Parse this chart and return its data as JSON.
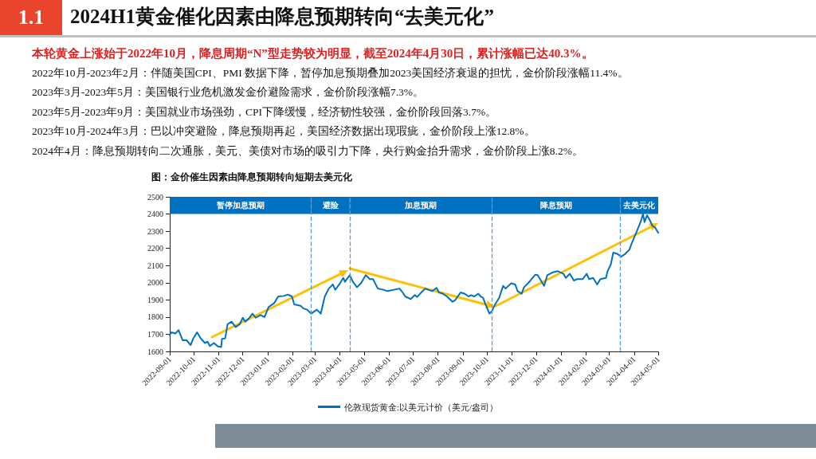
{
  "chart_data": {
    "type": "line",
    "title": "2024H1黄金催化因素由降息预期转向“去美元化”",
    "subtitle": "图：金价催生因素由降息预期转向短期去美元化",
    "annotations": [
      "1.1",
      "本轮黄金上涨始于2022年10月，降息周期“N”型走势较为明显，截至2024年4月30日，累计涨幅已达40.3%。",
      "2022年10月-2023年2月：伴随美国CPI、PMI 数据下降，暂停加息预期叠加2023美国经济衰退的担忧，金价阶段涨幅11.4%。",
      "2023年3月-2023年5月：美国银行业危机激发金价避险需求，金价阶段涨幅7.3%。",
      "2023年5月-2023年9月：美国就业市场强劲，CPI下降缓慢，经济韧性较强，金价阶段回落3.7%。",
      "2023年10月-2024年3月：巴以冲突避险，降息预期再起，美国经济数据出现瑕疵，金价阶段上涨12.8%。",
      "2024年4月：降息预期转向二次通胀，美元、美债对市场的吸引力下降，央行购金抬升需求，金价阶段上涨8.2%。"
    ],
    "xlim": [
      "2022-09-01",
      "2024-05-01"
    ],
    "xticks": [
      "2022-09-01",
      "2022-10-01",
      "2022-11-01",
      "2022-12-01",
      "2023-01-01",
      "2023-02-01",
      "2023-03-01",
      "2023-04-01",
      "2023-05-01",
      "2023-06-01",
      "2023-07-01",
      "2023-08-01",
      "2023-09-01",
      "2023-10-01",
      "2023-11-01",
      "2023-12-01",
      "2024-01-01",
      "2024-02-01",
      "2024-03-01",
      "2024-04-01",
      "2024-05-01"
    ],
    "ylim": [
      1600,
      2500
    ],
    "yticks": [
      1600,
      1700,
      1800,
      1900,
      2000,
      2100,
      2200,
      2300,
      2400,
      2500
    ],
    "grid": false,
    "legend": "bottom",
    "marker": "none",
    "line_style": "solid",
    "series": [
      {
        "name": "伦敦现货黄金:以美元计价（美元/盎司）",
        "color": "#0070c0",
        "x": [
          "2022-09-01",
          "2022-09-03",
          "2022-09-08",
          "2022-09-12",
          "2022-09-17",
          "2022-09-22",
          "2022-09-27",
          "2022-09-30",
          "2022-10-05",
          "2022-10-10",
          "2022-10-15",
          "2022-10-18",
          "2022-10-21",
          "2022-10-26",
          "2022-10-31",
          "2022-11-04",
          "2022-11-05",
          "2022-11-09",
          "2022-11-12",
          "2022-11-17",
          "2022-11-22",
          "2022-11-27",
          "2022-12-01",
          "2022-12-04",
          "2022-12-08",
          "2022-12-13",
          "2022-12-17",
          "2022-12-23",
          "2022-12-28",
          "2023-01-02",
          "2023-01-09",
          "2023-01-14",
          "2023-01-21",
          "2023-01-26",
          "2023-01-31",
          "2023-02-03",
          "2023-02-11",
          "2023-02-14",
          "2023-02-19",
          "2023-02-24",
          "2023-03-03",
          "2023-03-08",
          "2023-03-13",
          "2023-03-18",
          "2023-03-23",
          "2023-03-26",
          "2023-03-31",
          "2023-04-05",
          "2023-04-07",
          "2023-04-13",
          "2023-04-17",
          "2023-04-22",
          "2023-04-27",
          "2023-05-03",
          "2023-05-08",
          "2023-05-12",
          "2023-05-18",
          "2023-05-25",
          "2023-05-30",
          "2023-06-07",
          "2023-06-14",
          "2023-06-18",
          "2023-06-21",
          "2023-06-28",
          "2023-07-03",
          "2023-07-06",
          "2023-07-11",
          "2023-07-16",
          "2023-07-20",
          "2023-07-25",
          "2023-07-30",
          "2023-08-02",
          "2023-08-07",
          "2023-08-12",
          "2023-08-19",
          "2023-08-22",
          "2023-08-29",
          "2023-09-03",
          "2023-09-08",
          "2023-09-11",
          "2023-09-15",
          "2023-09-20",
          "2023-09-23",
          "2023-09-26",
          "2023-09-29",
          "2023-10-04",
          "2023-10-07",
          "2023-10-11",
          "2023-10-16",
          "2023-10-21",
          "2023-10-24",
          "2023-10-31",
          "2023-11-05",
          "2023-11-08",
          "2023-11-13",
          "2023-11-16",
          "2023-11-21",
          "2023-11-24",
          "2023-11-30",
          "2023-12-03",
          "2023-12-08",
          "2023-12-11",
          "2023-12-15",
          "2023-12-21",
          "2023-12-28",
          "2024-01-01",
          "2024-01-04",
          "2024-01-07",
          "2024-01-12",
          "2024-01-17",
          "2024-01-21",
          "2024-01-28",
          "2024-02-02",
          "2024-02-05",
          "2024-02-10",
          "2024-02-15",
          "2024-02-19",
          "2024-02-26",
          "2024-02-28",
          "2024-03-03",
          "2024-03-06",
          "2024-03-11",
          "2024-03-16",
          "2024-03-21",
          "2024-03-26",
          "2024-03-29",
          "2024-04-05",
          "2024-04-09",
          "2024-04-12",
          "2024-04-14",
          "2024-04-17",
          "2024-04-20",
          "2024-04-24",
          "2024-04-27",
          "2024-05-01"
        ],
        "values": [
          1696,
          1711,
          1704,
          1724,
          1665,
          1665,
          1637,
          1673,
          1711,
          1673,
          1649,
          1657,
          1631,
          1649,
          1629,
          1626,
          1673,
          1676,
          1758,
          1773,
          1742,
          1758,
          1796,
          1773,
          1789,
          1820,
          1796,
          1812,
          1800,
          1858,
          1881,
          1920,
          1923,
          1931,
          1920,
          1874,
          1866,
          1851,
          1843,
          1820,
          1843,
          1820,
          1920,
          1966,
          1990,
          1959,
          1990,
          2028,
          2005,
          2044,
          2005,
          1974,
          1997,
          2044,
          2021,
          2021,
          1966,
          1959,
          1951,
          1959,
          1966,
          1943,
          1920,
          1905,
          1928,
          1917,
          1943,
          1966,
          1959,
          1951,
          1970,
          1943,
          1936,
          1920,
          1889,
          1897,
          1943,
          1936,
          1920,
          1928,
          1920,
          1936,
          1920,
          1912,
          1874,
          1820,
          1835,
          1874,
          1912,
          1982,
          1966,
          1997,
          1990,
          1951,
          1936,
          1974,
          1997,
          2013,
          2047,
          2044,
          2005,
          1982,
          2044,
          2059,
          2067,
          2059,
          2052,
          2028,
          2052,
          2013,
          2021,
          2021,
          2052,
          2021,
          2028,
          1990,
          2021,
          2028,
          2067,
          2106,
          2175,
          2168,
          2152,
          2168,
          2191,
          2229,
          2307,
          2353,
          2400,
          2353,
          2392,
          2369,
          2330,
          2322,
          2291
        ]
      }
    ],
    "ref_lines": [
      {
        "axis": "x",
        "value": "2023-02-24",
        "color": "#5b9bd5",
        "line_style": "dashed"
      },
      {
        "axis": "x",
        "value": "2023-04-13",
        "color": "#5b9bd5",
        "line_style": "dashed"
      },
      {
        "axis": "x",
        "value": "2023-10-07",
        "color": "#5b9bd5",
        "line_style": "dashed"
      },
      {
        "axis": "x",
        "value": "2024-03-15",
        "color": "#5b9bd5",
        "line_style": "dashed"
      }
    ],
    "bands": [
      {
        "axis": "x",
        "from": "2022-09-01",
        "to": "2023-02-24",
        "label": "暂停加息预期",
        "color": "#0070c0"
      },
      {
        "axis": "x",
        "from": "2023-02-24",
        "to": "2023-04-13",
        "label": "避险",
        "color": "#0070c0"
      },
      {
        "axis": "x",
        "from": "2023-04-13",
        "to": "2023-10-07",
        "label": "加息预期",
        "color": "#0070c0"
      },
      {
        "axis": "x",
        "from": "2023-10-07",
        "to": "2024-03-15",
        "label": "降息预期",
        "color": "#0070c0"
      },
      {
        "axis": "x",
        "from": "2024-03-15",
        "to": "2024-05-01",
        "label": "去美元化",
        "color": "#0070c0"
      }
    ]
  }
}
